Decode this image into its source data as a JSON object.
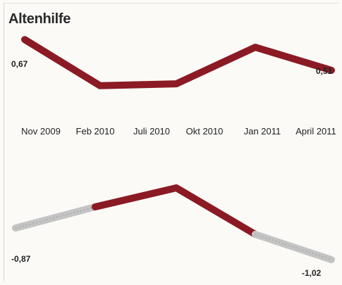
{
  "title": "Altenhilfe",
  "chart_data": [
    {
      "type": "line",
      "categories": [
        "Nov 2009",
        "Feb 2010",
        "Juli 2010",
        "Okt 2010",
        "Jan 2011",
        "April 2011"
      ],
      "values": [
        0.67,
        0.43,
        0.44,
        0.58,
        0.63,
        0.51
      ],
      "value_labels": [
        "0,67",
        "",
        "",
        "",
        "",
        "0,51"
      ],
      "line_color": "#8b1a24"
    },
    {
      "type": "line",
      "categories": [
        "Nov 2009",
        "Feb 2010",
        "Juli 2010",
        "Okt 2010",
        "Jan 2011",
        "April 2011"
      ],
      "values": [
        -0.87,
        -0.77,
        -0.68,
        -0.79,
        -0.9,
        -1.02
      ],
      "value_labels": [
        "-0,87",
        "",
        "",
        "",
        "",
        "-1,02"
      ],
      "colors": {
        "positive_segment": "#8b1a24",
        "negative_segment": "#c4c4c4",
        "segment_edge": "#999999"
      }
    }
  ]
}
